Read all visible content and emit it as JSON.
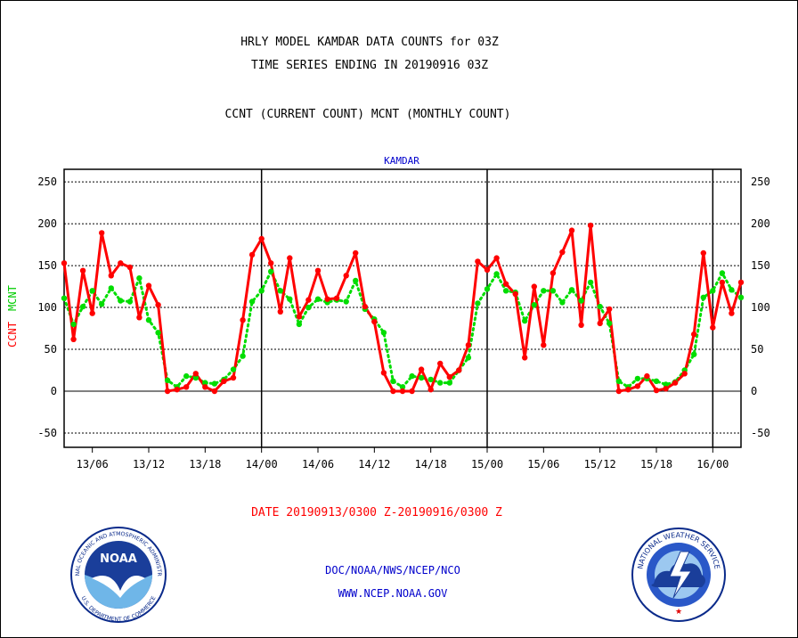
{
  "header": {
    "title_line1": "HRLY MODEL KAMDAR DATA COUNTS for 03Z",
    "title_line2": "TIME SERIES ENDING IN 20190916 03Z",
    "subtitle": "CCNT (CURRENT COUNT) MCNT (MONTHLY COUNT)",
    "station": "KAMDAR"
  },
  "footer": {
    "date_range": "DATE 20190913/0300 Z-20190916/0300 Z",
    "org_line": "DOC/NOAA/NWS/NCEP/NCO",
    "url": "WWW.NCEP.NOAA.GOV"
  },
  "logos": {
    "noaa": "NOAA",
    "noaa_ring": "NATIONAL OCEANIC AND ATMOSPHERIC ADMINISTRATION",
    "noaa_ring_bottom": "U.S. DEPARTMENT OF COMMERCE",
    "nws_ring": "NATIONAL WEATHER SERVICE"
  },
  "colors": {
    "background": "#ffffff",
    "frame": "#000000",
    "ccnt": "#ff0000",
    "mcnt": "#00dd00",
    "text_blue": "#0000cc",
    "text_red": "#ff0000"
  },
  "chart_data": {
    "type": "line",
    "title": "HRLY MODEL KAMDAR DATA COUNTS for 03Z",
    "ylabel_left": [
      "CCNT",
      "MCNT"
    ],
    "ylim": [
      -67,
      265
    ],
    "y_ticks": [
      250,
      200,
      150,
      100,
      50,
      0,
      -50
    ],
    "grid": true,
    "x_tick_labels": [
      "13/06",
      "13/12",
      "13/18",
      "14/00",
      "14/06",
      "14/12",
      "14/18",
      "15/00",
      "15/06",
      "15/12",
      "15/18",
      "16/00"
    ],
    "x_tick_hours": [
      3,
      9,
      15,
      21,
      27,
      33,
      39,
      45,
      51,
      57,
      63,
      69
    ],
    "day_boundaries_hours": [
      21,
      45,
      69
    ],
    "x_start": "2019-09-13 03Z",
    "x_end": "2019-09-16 03Z",
    "x_hours_from_start": [
      0,
      1,
      2,
      3,
      4,
      5,
      6,
      7,
      8,
      9,
      10,
      11,
      12,
      13,
      14,
      15,
      16,
      17,
      18,
      19,
      20,
      21,
      22,
      23,
      24,
      25,
      26,
      27,
      28,
      29,
      30,
      31,
      32,
      33,
      34,
      35,
      36,
      37,
      38,
      39,
      40,
      41,
      42,
      43,
      44,
      45,
      46,
      47,
      48,
      49,
      50,
      51,
      52,
      53,
      54,
      55,
      56,
      57,
      58,
      59,
      60,
      61,
      62,
      63,
      64,
      65,
      66,
      67,
      68,
      69,
      70,
      71,
      72
    ],
    "series": [
      {
        "name": "CCNT",
        "values": [
          153,
          62,
          144,
          93,
          189,
          138,
          153,
          148,
          88,
          126,
          103,
          0,
          2,
          5,
          21,
          5,
          0,
          12,
          16,
          85,
          163,
          182,
          153,
          95,
          159,
          89,
          109,
          144,
          110,
          111,
          138,
          165,
          101,
          83,
          22,
          0,
          0,
          0,
          26,
          2,
          33,
          17,
          25,
          55,
          155,
          145,
          159,
          128,
          116,
          40,
          125,
          55,
          141,
          166,
          192,
          79,
          198,
          81,
          98,
          0,
          2,
          6,
          18,
          1,
          3,
          10,
          21,
          68,
          165,
          76,
          130,
          93,
          130
        ]
      },
      {
        "name": "MCNT",
        "values": [
          111,
          80,
          101,
          120,
          104,
          123,
          108,
          107,
          135,
          85,
          70,
          13,
          5,
          18,
          16,
          10,
          9,
          14,
          26,
          42,
          107,
          120,
          143,
          120,
          110,
          80,
          100,
          110,
          106,
          109,
          107,
          132,
          98,
          86,
          70,
          12,
          5,
          18,
          16,
          14,
          10,
          10,
          25,
          40,
          105,
          122,
          140,
          120,
          118,
          84,
          103,
          120,
          120,
          106,
          121,
          108,
          130,
          101,
          81,
          12,
          5,
          15,
          15,
          12,
          8,
          11,
          25,
          44,
          112,
          120,
          141,
          121,
          112
        ]
      }
    ]
  }
}
